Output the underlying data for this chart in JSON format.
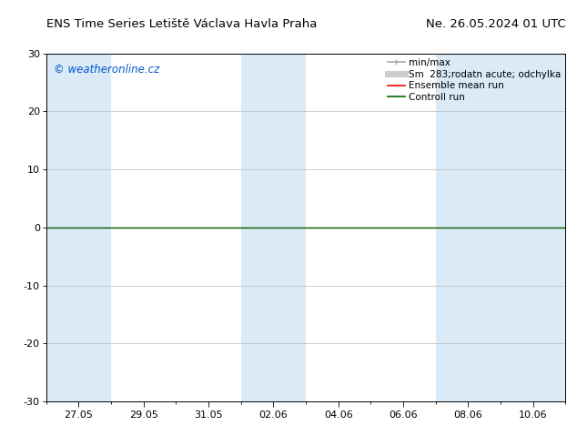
{
  "title_left": "ENS Time Series Letiště Václava Havla Praha",
  "title_right": "Ne. 26.05.2024 01 UTC",
  "watermark": "© weatheronline.cz",
  "watermark_color": "#0055cc",
  "ylim": [
    -30,
    30
  ],
  "yticks": [
    -30,
    -20,
    -10,
    0,
    10,
    20,
    30
  ],
  "xtick_labels": [
    "27.05",
    "29.05",
    "31.05",
    "02.06",
    "04.06",
    "06.06",
    "08.06",
    "10.06"
  ],
  "xtick_positions": [
    1,
    3,
    5,
    7,
    9,
    11,
    13,
    15
  ],
  "background_color": "#ffffff",
  "shaded_band_color": "#daeaf7",
  "shaded_ranges": [
    [
      0,
      2
    ],
    [
      6,
      8
    ],
    [
      12,
      16
    ]
  ],
  "zero_line_color": "#006600",
  "mean_line_color": "#ff0000",
  "legend_labels": [
    "min/max",
    "Sm  283;rodatn acute; odchylka",
    "Ensemble mean run",
    "Controll run"
  ],
  "legend_line_colors": [
    "#aaaaaa",
    "#cccccc",
    "#ff0000",
    "#006600"
  ],
  "title_fontsize": 9.5,
  "tick_fontsize": 8,
  "legend_fontsize": 7.5,
  "watermark_fontsize": 8.5,
  "grid_color": "#bbbbbb",
  "total_days": 16
}
